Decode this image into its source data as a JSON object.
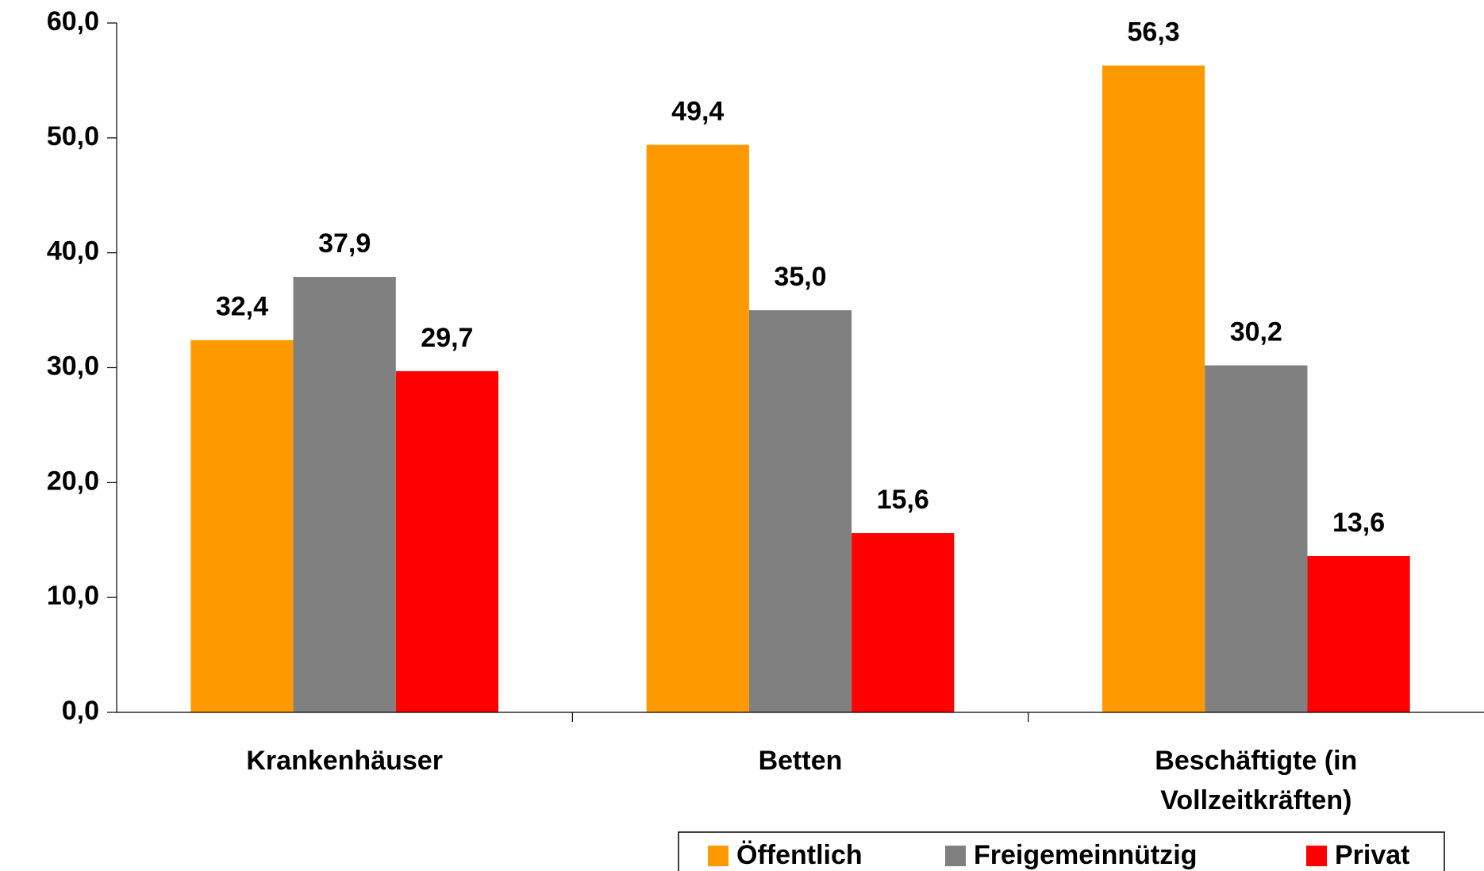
{
  "chart_data": {
    "type": "bar",
    "categories": [
      "Krankenhäuser",
      "Betten",
      "Beschäftigte (in Vollzeitkräften)"
    ],
    "series": [
      {
        "name": "Öffentlich",
        "color": "#ff9900",
        "values": [
          32.4,
          49.4,
          56.3
        ],
        "value_labels": [
          "32,4",
          "49,4",
          "56,3"
        ]
      },
      {
        "name": "Freigemeinnützig",
        "color": "#808080",
        "values": [
          37.9,
          35.0,
          30.2
        ],
        "value_labels": [
          "37,9",
          "35,0",
          "30,2"
        ]
      },
      {
        "name": "Privat",
        "color": "#ff0000",
        "values": [
          29.7,
          15.6,
          13.6
        ],
        "value_labels": [
          "29,7",
          "15,6",
          "13,6"
        ]
      }
    ],
    "ylim": [
      0,
      60
    ],
    "yticks": [
      {
        "value": 0,
        "label": "0,0"
      },
      {
        "value": 10,
        "label": "10,0"
      },
      {
        "value": 20,
        "label": "20,0"
      },
      {
        "value": 30,
        "label": "30,0"
      },
      {
        "value": 40,
        "label": "40,0"
      },
      {
        "value": 50,
        "label": "50,0"
      },
      {
        "value": 60,
        "label": "60,0"
      }
    ],
    "grid": false,
    "legend": "bottom-right"
  }
}
